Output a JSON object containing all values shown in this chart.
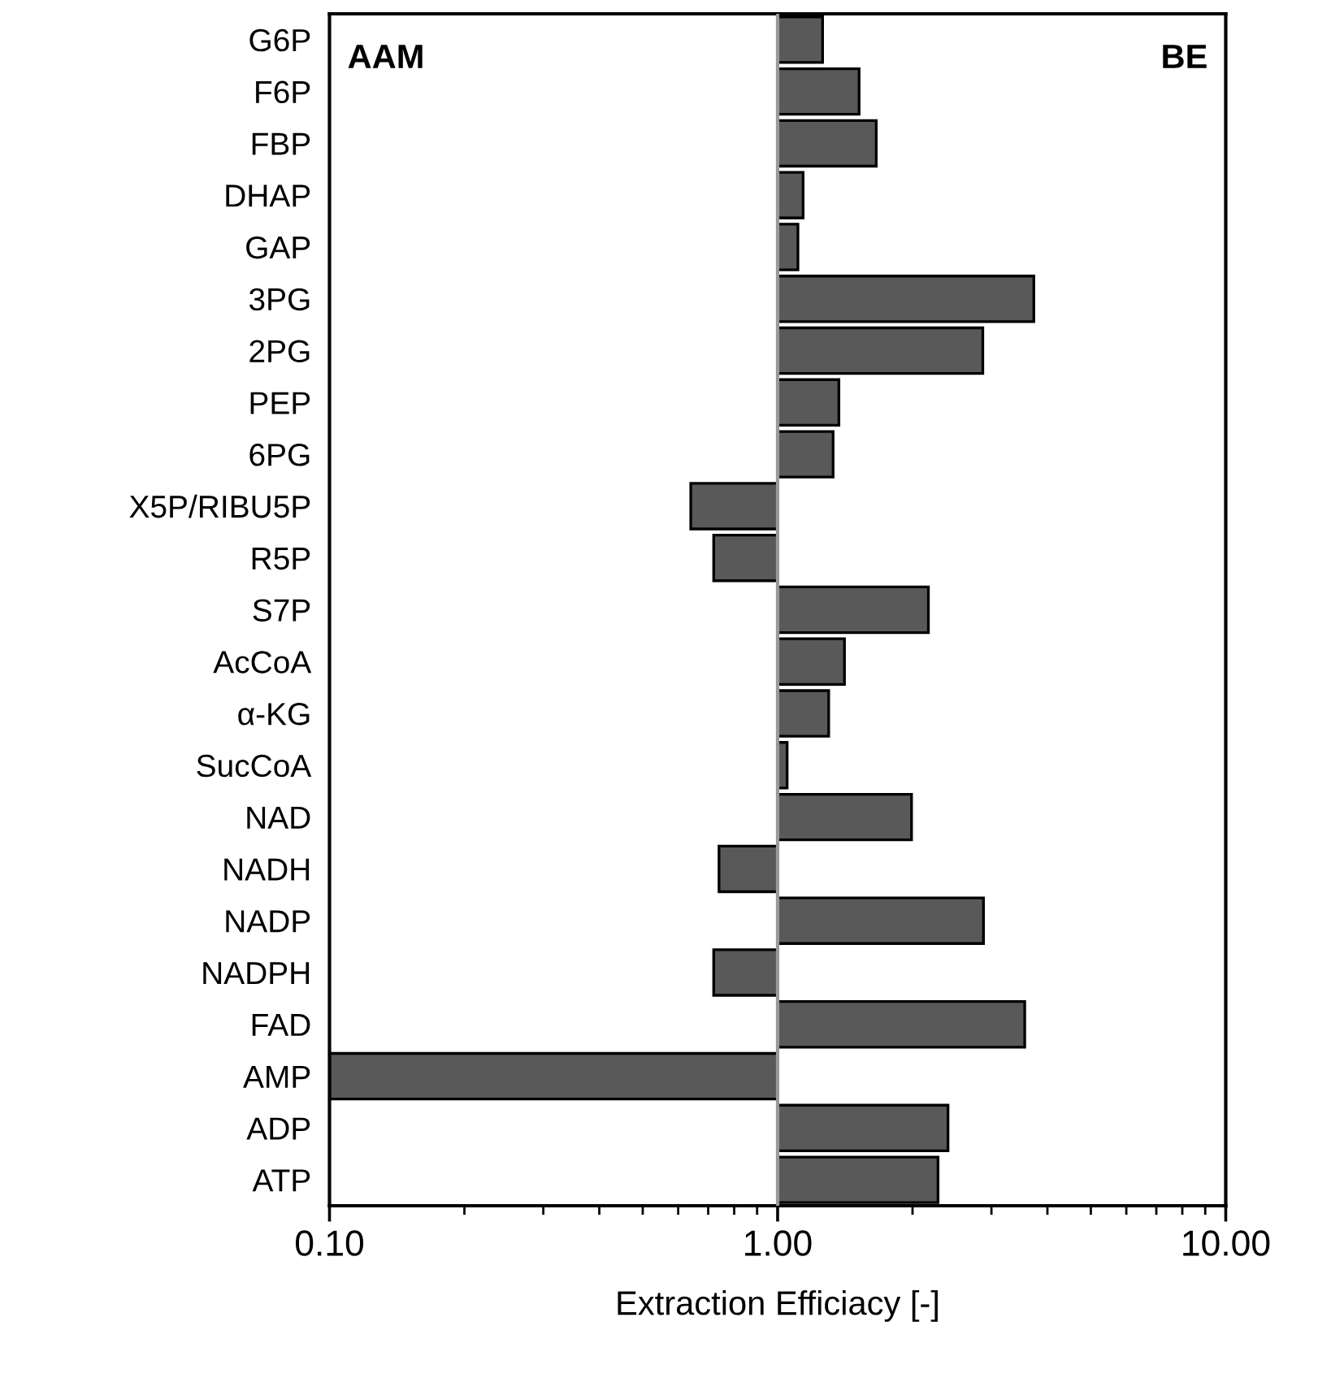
{
  "chart_data": {
    "type": "bar",
    "orientation": "horizontal",
    "log": "x",
    "xlabel": "Extraction Efficiacy [-]",
    "categories": [
      "G6P",
      "F6P",
      "FBP",
      "DHAP",
      "GAP",
      "3PG",
      "2PG",
      "PEP",
      "6PG",
      "X5P/RIBU5P",
      "R5P",
      "S7P",
      "AcCoA",
      "α-KG",
      "SucCoA",
      "NAD",
      "NADH",
      "NADP",
      "NADPH",
      "FAD",
      "AMP",
      "ADP",
      "ATP"
    ],
    "base": [
      1,
      1,
      1,
      1,
      1,
      1,
      1,
      1,
      1,
      1,
      1,
      1,
      1,
      1,
      1,
      1,
      1,
      1,
      1,
      1,
      1,
      1,
      1
    ],
    "values": [
      0.26,
      0.52,
      0.66,
      0.14,
      0.11,
      2.73,
      1.87,
      0.37,
      0.33,
      -0.36,
      -0.28,
      1.17,
      0.41,
      0.3,
      0.05,
      0.99,
      -0.26,
      1.88,
      -0.28,
      2.56,
      -0.9,
      1.4,
      1.28
    ],
    "color": "#595959",
    "xlim": [
      0.1,
      10
    ],
    "xticks": [
      {
        "value": 0.1,
        "label": "0.10"
      },
      {
        "value": 1,
        "label": "1.00"
      },
      {
        "value": 10,
        "label": "10.00"
      }
    ],
    "ref_lines": [
      {
        "axis": "x",
        "value": 1,
        "color": "#999999"
      }
    ],
    "annotations": [
      "AAM",
      "BE"
    ],
    "grid": false
  }
}
